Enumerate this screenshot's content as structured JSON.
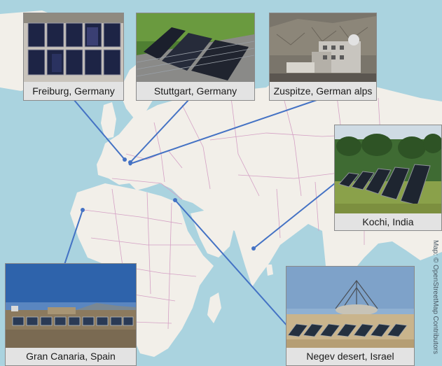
{
  "map": {
    "attribution": "Map: © OpenStreetMap Contributors",
    "colors": {
      "ocean": "#aad3df",
      "land": "#f2efe9",
      "borders": "#d4a0c4",
      "connector": "#4472c4"
    }
  },
  "sites": [
    {
      "id": "freiburg",
      "label": "Freiburg, Germany",
      "icon": "solar-panel-array-photo"
    },
    {
      "id": "stuttgart",
      "label": "Stuttgart, Germany",
      "icon": "solar-panel-array-photo"
    },
    {
      "id": "zugspitze",
      "label": "Zuspitze, German alps",
      "icon": "mountain-station-photo"
    },
    {
      "id": "kochi",
      "label": "Kochi, India",
      "icon": "solar-panel-array-photo"
    },
    {
      "id": "gran-canaria",
      "label": "Gran Canaria, Spain",
      "icon": "solar-panel-array-photo"
    },
    {
      "id": "negev",
      "label": "Negev desert, Israel",
      "icon": "solar-panel-array-photo"
    }
  ]
}
